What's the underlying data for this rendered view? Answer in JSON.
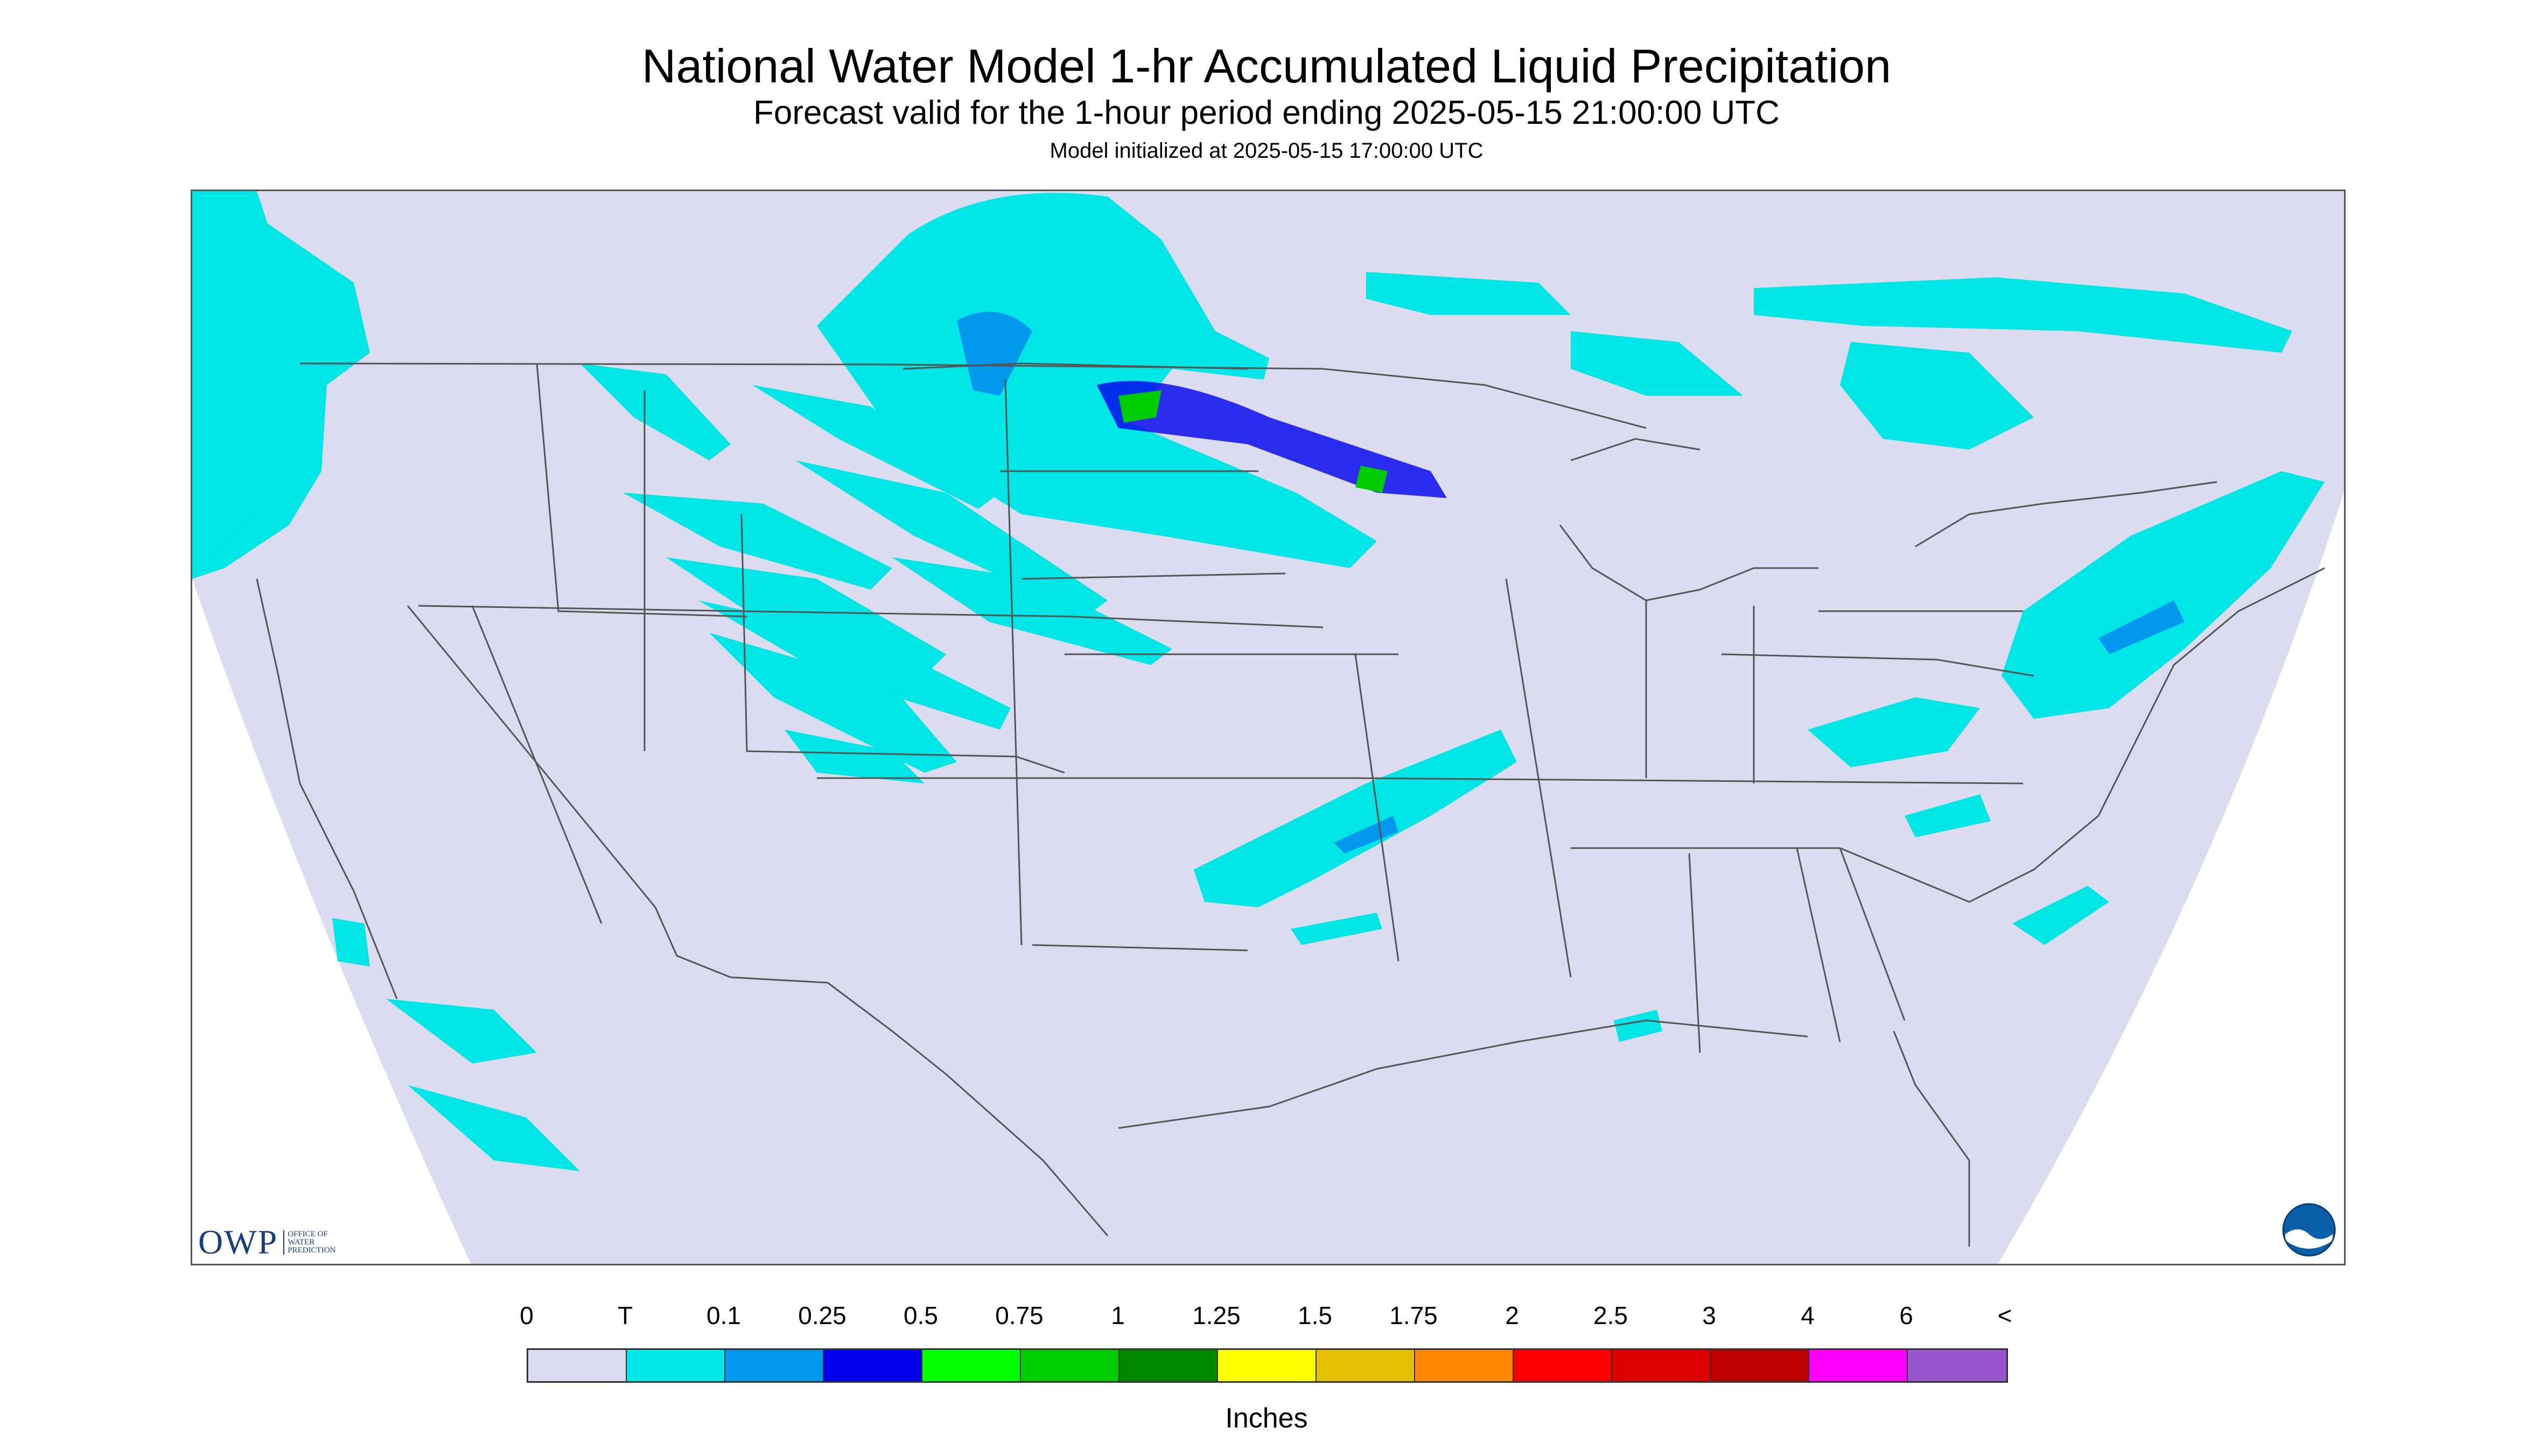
{
  "title": "National Water Model 1-hr Accumulated Liquid Precipitation",
  "subtitle": "Forecast valid for the 1-hour period ending 2025-05-15 21:00:00 UTC",
  "init_line": "Model initialized at 2025-05-15 17:00:00 UTC",
  "legend": {
    "units": "Inches",
    "ticks": [
      "0",
      "T",
      "0.1",
      "0.25",
      "0.5",
      "0.75",
      "1",
      "1.25",
      "1.5",
      "1.75",
      "2",
      "2.5",
      "3",
      "4",
      "6",
      "<"
    ],
    "colors": [
      "#dcdcf0",
      "#00e5e5",
      "#0098ee",
      "#0000ee",
      "#00ff00",
      "#00cc00",
      "#008800",
      "#ffff00",
      "#e6bf00",
      "#ff8800",
      "#ff0000",
      "#dd0000",
      "#bb0000",
      "#ff00ff",
      "#9955cc"
    ]
  },
  "map": {
    "no_data_color": "#ffffff",
    "domain_color": "#dcdcf0",
    "boundary_color": "#555555"
  },
  "logos": {
    "owp_mark": "OWP",
    "owp_sub": [
      "OFFICE OF",
      "WATER",
      "PREDICTION"
    ],
    "noaa_icon": "noaa-logo-icon"
  }
}
